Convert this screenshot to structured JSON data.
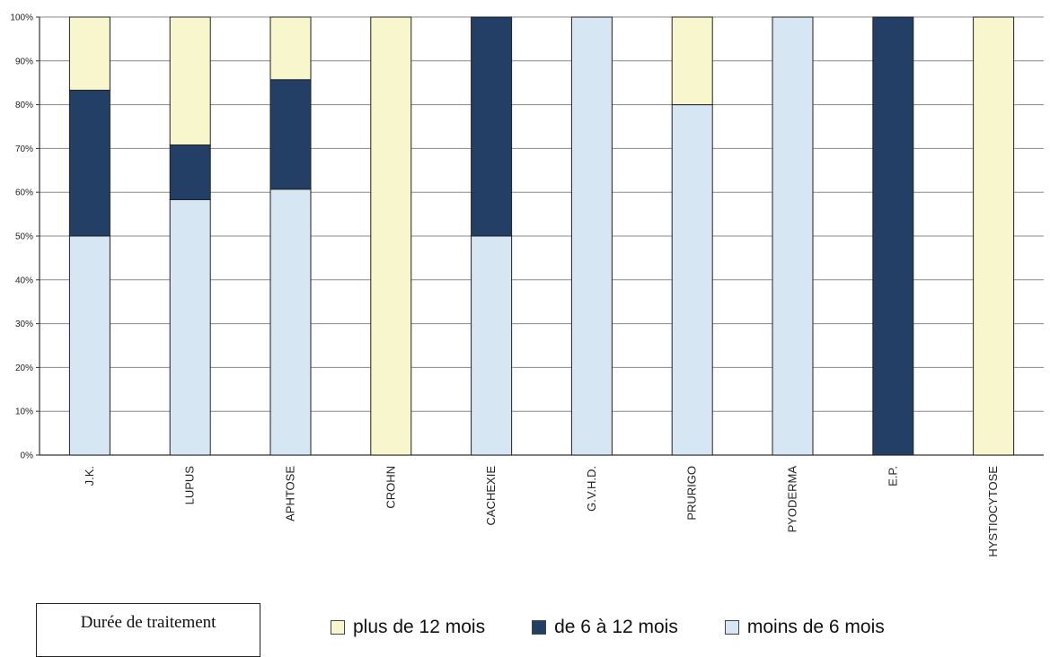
{
  "chart_data": {
    "type": "bar",
    "stacked": true,
    "percent": true,
    "categories": [
      "J.K.",
      "LUPUS",
      "APHTOSE",
      "CROHN",
      "CACHEXIE",
      "G.V.H.D.",
      "PRURIGO",
      "PYODERMA",
      "E.P.",
      "HYSTIOCYTOSE"
    ],
    "series": [
      {
        "name": "moins de 6 mois",
        "color": "#d6e6f3",
        "values": [
          50,
          58.3,
          60.7,
          0,
          50,
          100,
          80,
          100,
          0,
          0
        ]
      },
      {
        "name": "de 6 à 12 mois",
        "color": "#243f66",
        "values": [
          33.3,
          12.5,
          25,
          0,
          50,
          0,
          0,
          0,
          100,
          0
        ]
      },
      {
        "name": "plus de 12 mois",
        "color": "#f8f6cc",
        "values": [
          16.7,
          29.2,
          14.3,
          100,
          0,
          0,
          20,
          0,
          0,
          100
        ]
      }
    ],
    "yticks": [
      "0%",
      "10%",
      "20%",
      "30%",
      "40%",
      "50%",
      "60%",
      "70%",
      "80%",
      "90%",
      "100%"
    ],
    "ylim": [
      0,
      100
    ],
    "grid": true,
    "legend_position": "bottom"
  },
  "legend": {
    "title": "Durée de traitement",
    "items": [
      {
        "label": "plus de 12 mois",
        "color": "#f8f6cc"
      },
      {
        "label": "de 6 à 12 mois",
        "color": "#243f66"
      },
      {
        "label": "moins de 6 mois",
        "color": "#d6e6f3"
      }
    ]
  }
}
